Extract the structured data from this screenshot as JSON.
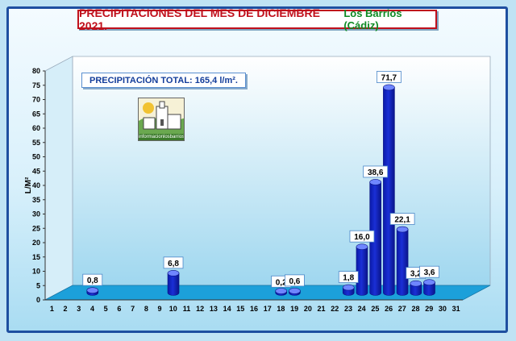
{
  "header": {
    "title": "PRECIPITACIONES DEL MES DE DICIEMBRE 2021.",
    "location": "Los Barrios (Cádiz)"
  },
  "note": {
    "total_label": "PRECIPITACIÓN TOTAL: 165,4 l/m²."
  },
  "logo": {
    "caption": "informacionlosbarrios"
  },
  "colors": {
    "bar": "#1a2fd6",
    "bar_top": "#6f86ff",
    "title": "#c0101c",
    "subtitle": "#0d8a23",
    "frame": "#1e4fa0"
  },
  "chart_data": {
    "type": "bar",
    "title": "PRECIPITACIONES DEL MES DE DICIEMBRE 2021.",
    "subtitle": "Los Barrios (Cádiz)",
    "xlabel": "",
    "ylabel": "L/M²",
    "ylim": [
      0,
      80
    ],
    "y_ticks": [
      0,
      5,
      10,
      15,
      20,
      25,
      30,
      35,
      40,
      45,
      50,
      55,
      60,
      65,
      70,
      75,
      80
    ],
    "grid": false,
    "categories": [
      "1",
      "2",
      "3",
      "4",
      "5",
      "6",
      "7",
      "8",
      "9",
      "10",
      "11",
      "12",
      "13",
      "14",
      "15",
      "16",
      "17",
      "18",
      "19",
      "20",
      "21",
      "22",
      "23",
      "24",
      "25",
      "26",
      "27",
      "28",
      "29",
      "30",
      "31"
    ],
    "values": [
      0,
      0,
      0.8,
      0,
      0,
      0,
      0,
      0,
      6.8,
      0,
      0,
      0,
      0,
      0,
      0,
      0,
      0.2,
      0.6,
      0,
      0,
      0,
      1.8,
      16.0,
      38.6,
      71.7,
      22.1,
      3.2,
      3.6,
      0,
      0,
      0
    ],
    "data_labels": {
      "3": "0,8",
      "9": "6,8",
      "17": "0,2",
      "18": "0,6",
      "22": "1,8",
      "23": "16,0",
      "24": "38,6",
      "25": "71,7",
      "26": "22,1",
      "27": "3,2",
      "28": "3,6"
    }
  }
}
